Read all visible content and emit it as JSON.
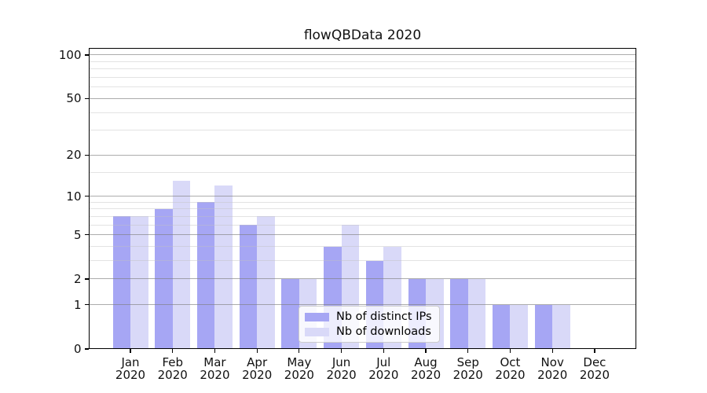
{
  "chart_data": {
    "type": "bar",
    "title": "flowQBData 2020",
    "categories": [
      "Jan 2020",
      "Feb 2020",
      "Mar 2020",
      "Apr 2020",
      "May 2020",
      "Jun 2020",
      "Jul 2020",
      "Aug 2020",
      "Sep 2020",
      "Oct 2020",
      "Nov 2020",
      "Dec 2020"
    ],
    "x_tick_labels_line1": [
      "Jan",
      "Feb",
      "Mar",
      "Apr",
      "May",
      "Jun",
      "Jul",
      "Aug",
      "Sep",
      "Oct",
      "Nov",
      "Dec"
    ],
    "x_tick_labels_line2": [
      "2020",
      "2020",
      "2020",
      "2020",
      "2020",
      "2020",
      "2020",
      "2020",
      "2020",
      "2020",
      "2020",
      "2020"
    ],
    "series": [
      {
        "name": "Nb of distinct IPs",
        "color": "#a6a6f4",
        "values": [
          7,
          8,
          9,
          6,
          2,
          4,
          3,
          2,
          2,
          1,
          1,
          0
        ]
      },
      {
        "name": "Nb of downloads",
        "color": "#d9d9f8",
        "values": [
          7,
          13,
          12,
          7,
          2,
          6,
          4,
          2,
          2,
          1,
          1,
          0
        ]
      }
    ],
    "y_axis": {
      "scale": "log10(1+y)",
      "major_ticks": [
        100,
        50,
        20,
        10,
        5,
        2,
        1,
        0
      ],
      "minor_gridlines": [
        3,
        4,
        6,
        7,
        8,
        9,
        15,
        30,
        40,
        60,
        70,
        80,
        90
      ],
      "ylim": [
        0,
        112
      ]
    },
    "legend": {
      "position": "lower center"
    },
    "grid": true
  },
  "colors": {
    "bar_distinct_ips": "#a6a6f4",
    "bar_downloads": "#d9d9f8",
    "major_grid": "#808080",
    "minor_grid": "#c0c0c0",
    "axis": "#000000",
    "background": "#ffffff"
  }
}
